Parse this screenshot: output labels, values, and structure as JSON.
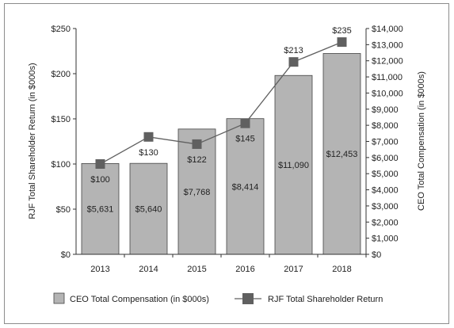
{
  "chart_data": {
    "type": "bar+line",
    "categories": [
      "2013",
      "2014",
      "2015",
      "2016",
      "2017",
      "2018"
    ],
    "series": [
      {
        "name": "CEO Total Compensation (in $000s)",
        "kind": "bar",
        "axis": "right",
        "values": [
          5631,
          5640,
          7768,
          8414,
          11090,
          12453
        ],
        "labels": [
          "$5,631",
          "$5,640",
          "$7,768",
          "$8,414",
          "$11,090",
          "$12,453"
        ],
        "color": "#b4b4b4"
      },
      {
        "name": "RJF Total Shareholder Return",
        "kind": "line",
        "axis": "left",
        "values": [
          100,
          130,
          122,
          145,
          213,
          235
        ],
        "labels": [
          "$100",
          "$130",
          "$122",
          "$145",
          "$213",
          "$235"
        ],
        "color": "#606060"
      }
    ],
    "left_axis": {
      "label": "RJF Total Shareholder Return (in $000s)",
      "range": [
        0,
        250
      ],
      "ticks": [
        0,
        50,
        100,
        150,
        200,
        250
      ],
      "tick_labels": [
        "$0",
        "$50",
        "$100",
        "$150",
        "$200",
        "$250"
      ]
    },
    "right_axis": {
      "label": "CEO Total Compensation (in $000s)",
      "range": [
        0,
        14000
      ],
      "ticks": [
        0,
        1000,
        2000,
        3000,
        4000,
        5000,
        6000,
        7000,
        8000,
        9000,
        10000,
        11000,
        12000,
        13000,
        14000
      ],
      "tick_labels": [
        "$0",
        "$1,000",
        "$2,000",
        "$3,000",
        "$4,000",
        "$5,000",
        "$6,000",
        "$7,000",
        "$8,000",
        "$9,000",
        "$10,000",
        "$11,000",
        "$12,000",
        "$13,000",
        "$14,000"
      ]
    },
    "grid": false,
    "legend_position": "bottom"
  }
}
